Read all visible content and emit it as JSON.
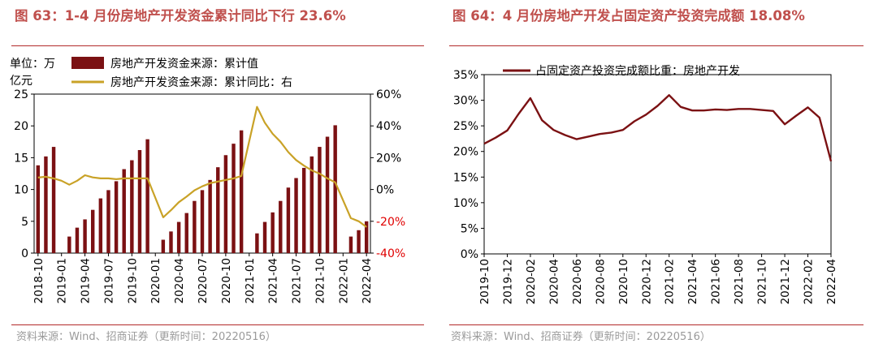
{
  "left_panel": {
    "title": "图 63：1-4 月份房地产开发资金累计同比下行 23.6%",
    "source": "资料来源：Wind、招商证券（更新时间：20220516）",
    "unit_label_1": "单位：万",
    "unit_label_2": "亿元"
  },
  "right_panel": {
    "title": "图 64：4 月份房地产开发占固定资产投资完成额 18.08%",
    "source": "资料来源：Wind、招商证券（更新时间：20220516）"
  },
  "colors": {
    "bar": "#7b1113",
    "yoy_line": "#c9a227",
    "share_line": "#7b1113",
    "title": "#c0504d",
    "neg_tick": "#e00000"
  },
  "chart_data": [
    {
      "type": "bar+line",
      "title": "图 63：1-4 月份房地产开发资金累计同比下行 23.6%",
      "categories": [
        "2018-10",
        "2018-11",
        "2018-12",
        "2019-01",
        "2019-02",
        "2019-03",
        "2019-04",
        "2019-05",
        "2019-06",
        "2019-07",
        "2019-08",
        "2019-09",
        "2019-10",
        "2019-11",
        "2019-12",
        "2020-01",
        "2020-02",
        "2020-03",
        "2020-04",
        "2020-05",
        "2020-06",
        "2020-07",
        "2020-08",
        "2020-09",
        "2020-10",
        "2020-11",
        "2020-12",
        "2021-01",
        "2021-02",
        "2021-03",
        "2021-04",
        "2021-05",
        "2021-06",
        "2021-07",
        "2021-08",
        "2021-09",
        "2021-10",
        "2021-11",
        "2021-12",
        "2022-01",
        "2022-02",
        "2022-03",
        "2022-04"
      ],
      "x_tick_labels": [
        "2018-10",
        "2019-01",
        "2019-04",
        "2019-07",
        "2019-10",
        "2020-01",
        "2020-04",
        "2020-07",
        "2020-10",
        "2021-01",
        "2021-04",
        "2021-07",
        "2021-10",
        "2022-01",
        "2022-04"
      ],
      "series": [
        {
          "name": "房地产开发资金来源：累计值",
          "axis": "left",
          "kind": "bar",
          "values": [
            13.8,
            15.2,
            16.7,
            null,
            2.6,
            4.0,
            5.3,
            6.8,
            8.6,
            9.9,
            11.3,
            13.2,
            14.6,
            16.2,
            17.9,
            null,
            2.1,
            3.4,
            4.9,
            6.3,
            8.2,
            9.9,
            11.5,
            13.5,
            15.4,
            17.2,
            19.3,
            null,
            3.1,
            4.9,
            6.4,
            8.2,
            10.3,
            11.8,
            13.4,
            15.2,
            16.7,
            18.3,
            20.1,
            null,
            2.6,
            3.6,
            5.0
          ]
        },
        {
          "name": "房地产开发资金来源：累计同比：右",
          "axis": "right",
          "kind": "line",
          "values": [
            7.5,
            8.0,
            7.0,
            5.5,
            3.0,
            5.5,
            9.0,
            7.6,
            7.0,
            7.0,
            6.5,
            7.0,
            7.0,
            7.0,
            7.0,
            null,
            -17.5,
            -13.0,
            -8.0,
            -4.5,
            -0.5,
            2.0,
            4.0,
            5.0,
            6.0,
            7.0,
            8.5,
            null,
            52.0,
            42.0,
            35.0,
            30.0,
            23.5,
            18.5,
            15.0,
            12.0,
            10.0,
            7.0,
            4.5,
            null,
            -18.0,
            -20.0,
            -23.6
          ]
        }
      ],
      "legend": [
        "房地产开发资金来源：累计值",
        "房地产开发资金来源：累计同比：右"
      ],
      "y_left": {
        "min": 0,
        "max": 25,
        "step": 5,
        "ticks": [
          "0",
          "5",
          "10",
          "15",
          "20",
          "25"
        ]
      },
      "y_right": {
        "min": -40,
        "max": 60,
        "step": 20,
        "ticks": [
          "-40%",
          "-20%",
          "0%",
          "20%",
          "40%",
          "60%"
        ]
      }
    },
    {
      "type": "line",
      "title": "图 64：4 月份房地产开发占固定资产投资完成额 18.08%",
      "categories": [
        "2019-10",
        "2019-11",
        "2019-12",
        "2020-01",
        "2020-02",
        "2020-03",
        "2020-04",
        "2020-05",
        "2020-06",
        "2020-07",
        "2020-08",
        "2020-09",
        "2020-10",
        "2020-11",
        "2020-12",
        "2021-01",
        "2021-02",
        "2021-03",
        "2021-04",
        "2021-05",
        "2021-06",
        "2021-07",
        "2021-08",
        "2021-09",
        "2021-10",
        "2021-11",
        "2021-12",
        "2022-01",
        "2022-02",
        "2022-03",
        "2022-04"
      ],
      "x_tick_labels": [
        "2019-10",
        "2019-12",
        "2020-02",
        "2020-04",
        "2020-06",
        "2020-08",
        "2020-10",
        "2020-12",
        "2021-02",
        "2021-04",
        "2021-06",
        "2021-08",
        "2021-10",
        "2021-12",
        "2022-02",
        "2022-04"
      ],
      "series": [
        {
          "name": "占固定资产投资完成额比重：房地产开发",
          "values": [
            21.5,
            22.7,
            24.1,
            27.4,
            30.4,
            26.1,
            24.2,
            23.2,
            22.4,
            22.9,
            23.4,
            23.7,
            24.2,
            25.9,
            27.2,
            28.9,
            31.0,
            28.7,
            28.0,
            28.0,
            28.2,
            28.1,
            28.3,
            28.3,
            28.1,
            27.9,
            25.3,
            27.0,
            28.6,
            26.6,
            18.08
          ]
        }
      ],
      "legend": [
        "占固定资产投资完成额比重：房地产开发"
      ],
      "y_axis": {
        "min": 0,
        "max": 35,
        "step": 5,
        "ticks": [
          "0%",
          "5%",
          "10%",
          "15%",
          "20%",
          "25%",
          "30%",
          "35%"
        ]
      }
    }
  ]
}
